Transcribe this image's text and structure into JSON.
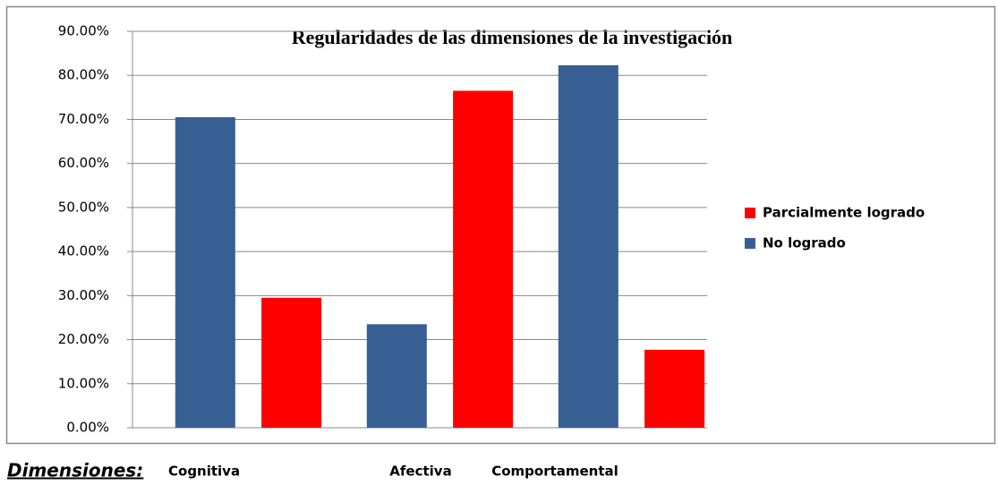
{
  "chart_data": {
    "type": "bar",
    "title": "Regularidades de las dimensiones de la investigación",
    "x_label": "Dimensiones:",
    "categories": [
      "Cognitiva",
      "Afectiva",
      "Comportamental"
    ],
    "series": [
      {
        "name": "Parcialmente logrado",
        "color": "#ff0000",
        "values": [
          29.5,
          76.5,
          17.7
        ]
      },
      {
        "name": "No logrado",
        "color": "#375f93",
        "values": [
          70.5,
          23.5,
          82.3
        ]
      }
    ],
    "ylim": [
      0,
      90
    ],
    "yticks": [
      {
        "value": 0,
        "label": "0.00%"
      },
      {
        "value": 10,
        "label": "10.00%"
      },
      {
        "value": 20,
        "label": "20.00%"
      },
      {
        "value": 30,
        "label": "30.00%"
      },
      {
        "value": 40,
        "label": "40.00%"
      },
      {
        "value": 50,
        "label": "50.00%"
      },
      {
        "value": 60,
        "label": "60.00%"
      },
      {
        "value": 70,
        "label": "70.00%"
      },
      {
        "value": 80,
        "label": "80.00%"
      },
      {
        "value": 90,
        "label": "90.00%"
      }
    ],
    "grid": true,
    "legend": "right"
  }
}
